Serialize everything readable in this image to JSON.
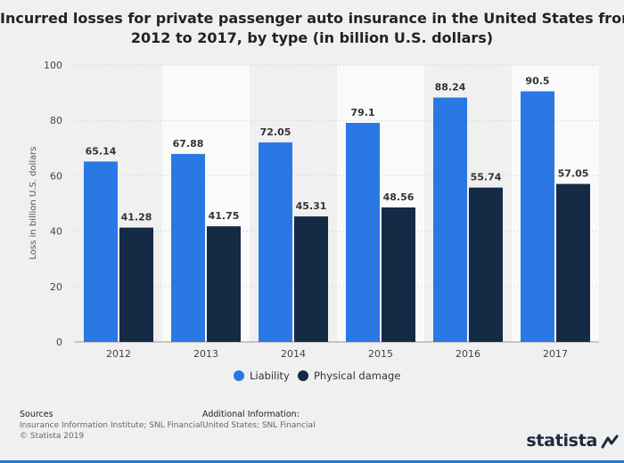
{
  "chart_data": {
    "type": "bar",
    "title_lines": [
      "Incurred losses for private passenger auto insurance in the United States from",
      "2012 to 2017, by type (in billion U.S. dollars)"
    ],
    "ylabel": "Loss in billion U.S. dollars",
    "xlabel": "",
    "ylim": [
      0,
      100
    ],
    "yticks": [
      0,
      20,
      40,
      60,
      80,
      100
    ],
    "grid": true,
    "legend_position": "bottom-center",
    "categories": [
      "2012",
      "2013",
      "2014",
      "2015",
      "2016",
      "2017"
    ],
    "series": [
      {
        "name": "Liability",
        "color": "#2b78e4",
        "values": [
          65.14,
          67.88,
          72.05,
          79.1,
          88.24,
          90.5
        ],
        "labels": [
          "65.14",
          "67.88",
          "72.05",
          "79.1",
          "88.24",
          "90.5"
        ]
      },
      {
        "name": "Physical damage",
        "color": "#142a45",
        "values": [
          41.28,
          41.75,
          45.31,
          48.56,
          55.74,
          57.05
        ],
        "labels": [
          "41.28",
          "41.75",
          "45.31",
          "48.56",
          "55.74",
          "57.05"
        ]
      }
    ]
  },
  "footer": {
    "sources_heading": "Sources",
    "sources_text": "Insurance Information Institute; SNL Financial",
    "copyright": "© Statista 2019",
    "additional_heading": "Additional Information:",
    "additional_text": "United States; SNL Financial",
    "brand": "statista"
  }
}
